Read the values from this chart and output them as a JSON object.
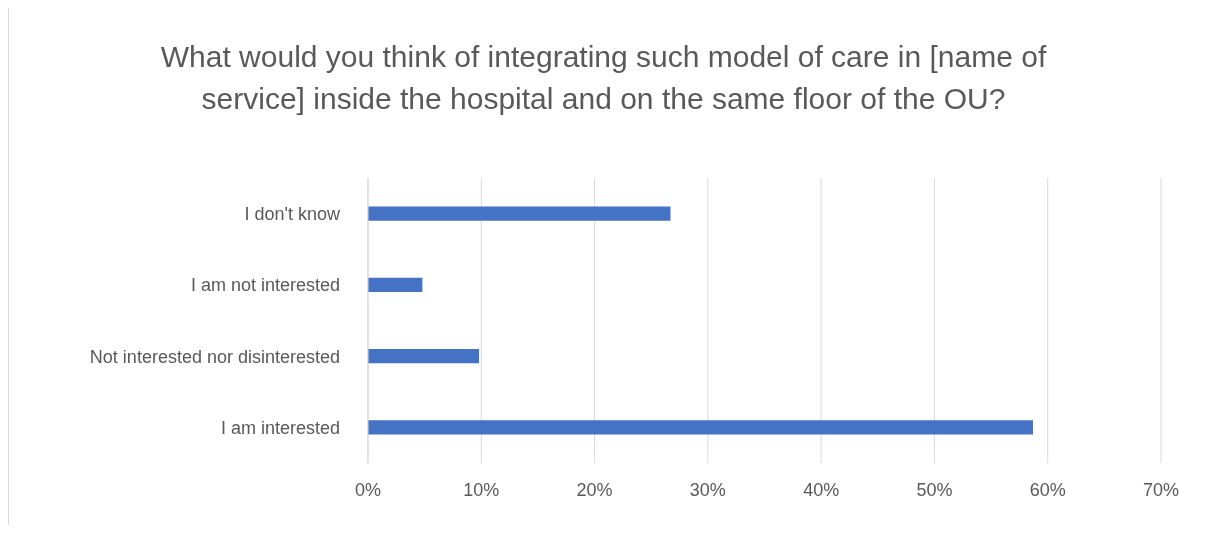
{
  "chart_data": {
    "type": "bar",
    "orientation": "horizontal",
    "title": "What would you think of integrating such model of care in [name of service] inside the hospital and on the same floor of the OU?",
    "categories": [
      "I don't know",
      "I am not interested",
      "Not interested nor disinterested",
      "I am interested"
    ],
    "values": [
      26.7,
      4.8,
      9.8,
      58.7
    ],
    "color": "#4472c4",
    "xlim": [
      0,
      70
    ],
    "xticks": [
      {
        "value": 0,
        "label": "0%"
      },
      {
        "value": 10,
        "label": "10%"
      },
      {
        "value": 20,
        "label": "20%"
      },
      {
        "value": 30,
        "label": "30%"
      },
      {
        "value": 40,
        "label": "40%"
      },
      {
        "value": 50,
        "label": "50%"
      },
      {
        "value": 60,
        "label": "60%"
      },
      {
        "value": 70,
        "label": "70%"
      }
    ],
    "grid": "x",
    "legend": false
  }
}
